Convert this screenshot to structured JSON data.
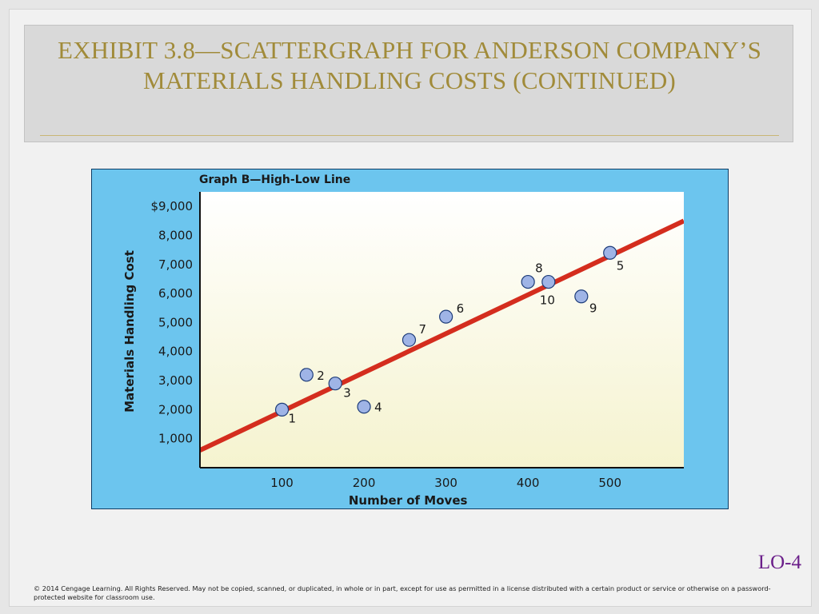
{
  "slide": {
    "title": "Exhibit 3.8—Scattergraph for Anderson Company’s Materials Handling Costs (continued)",
    "lo_tag": "LO-4",
    "copyright": "© 2014 Cengage Learning. All Rights Reserved. May not be copied, scanned, or duplicated, in whole or in part, except for use as permitted in a license distributed with a certain product or service or otherwise on a password-protected website for classroom use."
  },
  "chart_data": {
    "type": "scatter",
    "title": "Graph B—High-Low Line",
    "xlabel": "Number of Moves",
    "ylabel": "Materials Handling Cost",
    "xlim": [
      0,
      590
    ],
    "ylim": [
      0,
      9500
    ],
    "x_ticks": [
      100,
      200,
      300,
      400,
      500
    ],
    "x_tick_labels": [
      "100",
      "200",
      "300",
      "400",
      "500"
    ],
    "y_ticks": [
      1000,
      2000,
      3000,
      4000,
      5000,
      6000,
      7000,
      8000,
      9000
    ],
    "y_tick_labels": [
      "1,000",
      "2,000",
      "3,000",
      "4,000",
      "5,000",
      "6,000",
      "7,000",
      "8,000",
      "$9,000"
    ],
    "grid": false,
    "points": [
      {
        "label": "1",
        "x": 100,
        "y": 2000
      },
      {
        "label": "2",
        "x": 130,
        "y": 3200
      },
      {
        "label": "3",
        "x": 165,
        "y": 2900
      },
      {
        "label": "4",
        "x": 200,
        "y": 2100
      },
      {
        "label": "5",
        "x": 500,
        "y": 7400
      },
      {
        "label": "6",
        "x": 300,
        "y": 5200
      },
      {
        "label": "7",
        "x": 255,
        "y": 4400
      },
      {
        "label": "8",
        "x": 400,
        "y": 6400
      },
      {
        "label": "9",
        "x": 465,
        "y": 5900
      },
      {
        "label": "10",
        "x": 425,
        "y": 6400
      }
    ],
    "fit_line": {
      "x": [
        0,
        590
      ],
      "y": [
        600,
        8500
      ]
    },
    "colors": {
      "panel": "#6cc5ee",
      "plot_bg_top": "#ffffff",
      "plot_bg_bottom": "#f5f3cf",
      "point_fill": "#9fb4e6",
      "point_stroke": "#1e3d7a",
      "fit_line": "#d42d1e"
    }
  }
}
